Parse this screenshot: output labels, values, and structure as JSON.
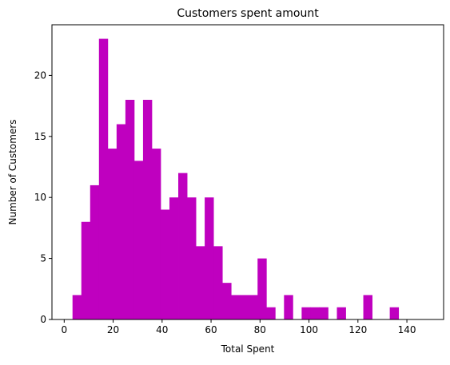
{
  "chart_data": {
    "type": "bar",
    "title": "Customers spent amount",
    "xlabel": "Total Spent",
    "ylabel": "Number of Customers",
    "bar_color": "#bf00bf",
    "xlim": [
      -5.0,
      155.0
    ],
    "ylim": [
      0,
      24.15
    ],
    "xticks": [
      0,
      20,
      40,
      60,
      80,
      100,
      120,
      140
    ],
    "yticks": [
      0,
      5,
      10,
      15,
      20
    ],
    "bin_start": 3.4,
    "bin_width": 3.6,
    "counts": [
      2,
      8,
      11,
      23,
      14,
      16,
      18,
      13,
      18,
      14,
      9,
      10,
      12,
      10,
      6,
      10,
      6,
      3,
      2,
      2,
      2,
      5,
      1,
      0,
      2,
      0,
      1,
      1,
      1,
      0,
      1,
      0,
      0,
      2,
      0,
      0,
      1
    ],
    "grid": false,
    "legend": "none"
  }
}
